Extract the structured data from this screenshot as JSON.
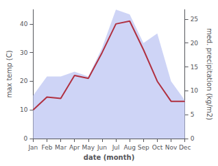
{
  "chart_data": {
    "type": "line",
    "categories": [
      "Jan",
      "Feb",
      "Mar",
      "Apr",
      "May",
      "Jun",
      "Jul",
      "Aug",
      "Sep",
      "Oct",
      "Nov",
      "Dec"
    ],
    "xlabel": "date (month)",
    "ylabel": "max temp (C)",
    "y2label": "med. precipitation (kg/m2)",
    "series": [
      {
        "type": "area",
        "color": "#c5cdf5",
        "axis": "y2",
        "values": [
          9,
          13,
          13,
          14,
          13,
          19,
          27,
          26,
          20,
          22,
          12,
          8
        ]
      },
      {
        "type": "line",
        "color": "#b03040",
        "values": [
          10,
          14.5,
          14,
          22,
          21,
          30,
          40,
          41,
          31,
          20,
          13,
          13
        ]
      }
    ],
    "ylim": [
      0,
      45
    ],
    "yticks": [
      0,
      10,
      20,
      30,
      40
    ],
    "y2lim": [
      0,
      27
    ],
    "y2ticks": [
      0,
      5,
      10,
      15,
      20,
      25
    ],
    "grid": false
  }
}
